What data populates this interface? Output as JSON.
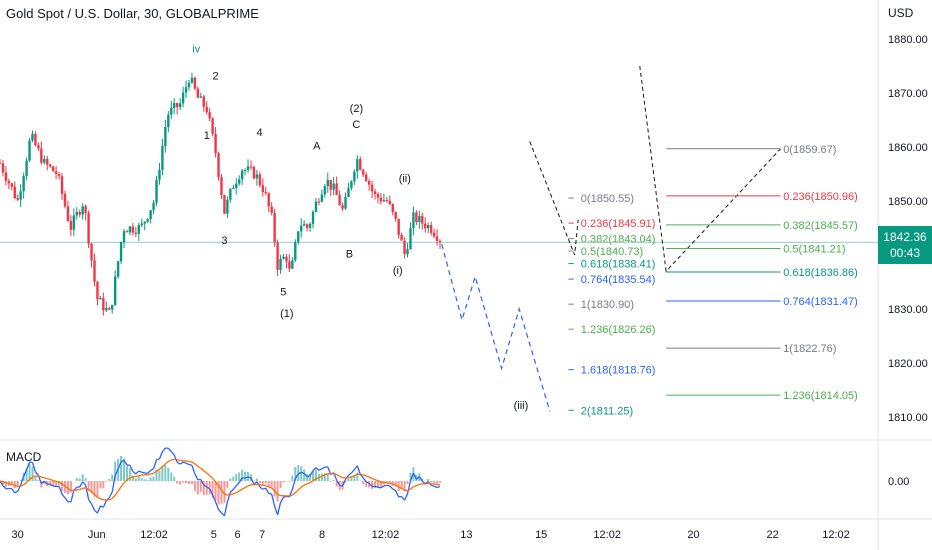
{
  "header": {
    "title": "Gold Spot / U.S. Dollar, 30, GLOBALPRIME",
    "currency": "USD"
  },
  "price_tag": {
    "price": "1842.36",
    "countdown": "00:43"
  },
  "macd": {
    "label": "MACD",
    "zero_tick": "0.00"
  },
  "chart_data": {
    "type": "candlestick",
    "y_axis": {
      "ticks": [
        1810,
        1820,
        1830,
        1840,
        1850,
        1860,
        1870,
        1880
      ],
      "tick_labels": [
        "1810.00",
        "1820.00",
        "1830.00",
        "1840.00",
        "1850.00",
        "1860.00",
        "1870.00",
        "1880.00"
      ]
    },
    "x_axis": {
      "ticks": [
        {
          "label": "30",
          "t": 0.02
        },
        {
          "label": "Jun",
          "t": 0.11
        },
        {
          "label": "12:02",
          "t": 0.175
        },
        {
          "label": "5",
          "t": 0.243
        },
        {
          "label": "6",
          "t": 0.27
        },
        {
          "label": "7",
          "t": 0.298
        },
        {
          "label": "8",
          "t": 0.366
        },
        {
          "label": "12:02",
          "t": 0.438
        },
        {
          "label": "13",
          "t": 0.53
        },
        {
          "label": "15",
          "t": 0.615
        },
        {
          "label": "12:02",
          "t": 0.69
        },
        {
          "label": "20",
          "t": 0.788
        },
        {
          "label": "22",
          "t": 0.878
        },
        {
          "label": "12:02",
          "t": 0.95
        }
      ]
    },
    "last_price": 1842.36,
    "price_path": [
      [
        0,
        1857
      ],
      [
        0.02,
        1850
      ],
      [
        0.035,
        1862
      ],
      [
        0.05,
        1857
      ],
      [
        0.065,
        1855
      ],
      [
        0.08,
        1845
      ],
      [
        0.095,
        1850
      ],
      [
        0.11,
        1832
      ],
      [
        0.125,
        1829
      ],
      [
        0.14,
        1845
      ],
      [
        0.16,
        1845
      ],
      [
        0.175,
        1850
      ],
      [
        0.19,
        1866
      ],
      [
        0.205,
        1868
      ],
      [
        0.215,
        1873
      ],
      [
        0.225,
        1869
      ],
      [
        0.235,
        1867
      ],
      [
        0.245,
        1859
      ],
      [
        0.255,
        1848
      ],
      [
        0.265,
        1853
      ],
      [
        0.275,
        1856
      ],
      [
        0.29,
        1855
      ],
      [
        0.3,
        1852
      ],
      [
        0.31,
        1846
      ],
      [
        0.315,
        1838
      ],
      [
        0.325,
        1840
      ],
      [
        0.33,
        1836
      ],
      [
        0.34,
        1846
      ],
      [
        0.35,
        1845
      ],
      [
        0.36,
        1850
      ],
      [
        0.37,
        1854
      ],
      [
        0.38,
        1852
      ],
      [
        0.39,
        1848
      ],
      [
        0.405,
        1858
      ],
      [
        0.415,
        1855
      ],
      [
        0.425,
        1851
      ],
      [
        0.44,
        1850
      ],
      [
        0.45,
        1846
      ],
      [
        0.46,
        1840
      ],
      [
        0.47,
        1847
      ],
      [
        0.48,
        1846
      ],
      [
        0.49,
        1845
      ],
      [
        0.5,
        1843
      ]
    ],
    "wave_labels": [
      {
        "text": "iv",
        "t": 0.223,
        "price": 1877.5,
        "color": "#089981"
      },
      {
        "text": "2",
        "t": 0.245,
        "price": 1872.5
      },
      {
        "text": "1",
        "t": 0.235,
        "price": 1861.5
      },
      {
        "text": "4",
        "t": 0.295,
        "price": 1862
      },
      {
        "text": "3",
        "t": 0.255,
        "price": 1842
      },
      {
        "text": "A",
        "t": 0.36,
        "price": 1859.5
      },
      {
        "text": "(2)",
        "t": 0.405,
        "price": 1866.5
      },
      {
        "text": "C",
        "t": 0.405,
        "price": 1863.5
      },
      {
        "text": "(ii)",
        "t": 0.46,
        "price": 1853.5
      },
      {
        "text": "B",
        "t": 0.397,
        "price": 1839.5
      },
      {
        "text": "(i)",
        "t": 0.452,
        "price": 1836.5
      },
      {
        "text": "5",
        "t": 0.322,
        "price": 1832.5
      },
      {
        "text": "(1)",
        "t": 0.326,
        "price": 1828.5
      },
      {
        "text": "(iii)",
        "t": 0.592,
        "price": 1811.5
      }
    ],
    "projection_path": [
      [
        0.502,
        1842
      ],
      [
        0.525,
        1828
      ],
      [
        0.54,
        1836
      ],
      [
        0.57,
        1819
      ],
      [
        0.59,
        1830
      ],
      [
        0.625,
        1811
      ]
    ],
    "fib_left": [
      {
        "label": "0",
        "value": "1850.55",
        "color": "#787b86",
        "y": 1850.55
      },
      {
        "label": "0.236",
        "value": "1845.91",
        "color": "#f23645",
        "y": 1845.91
      },
      {
        "label": "0.382",
        "value": "1843.04",
        "color": "#4caf50",
        "y": 1843.04
      },
      {
        "label": "0.5",
        "value": "1840.73",
        "color": "#4caf50",
        "y": 1840.73
      },
      {
        "label": "0.618",
        "value": "1838.41",
        "color": "#089981",
        "y": 1838.41
      },
      {
        "label": "0.764",
        "value": "1835.54",
        "color": "#2962ff",
        "y": 1835.54
      },
      {
        "label": "1",
        "value": "1830.90",
        "color": "#787b86",
        "y": 1830.9
      },
      {
        "label": "1.236",
        "value": "1826.26",
        "color": "#4caf50",
        "y": 1826.26
      },
      {
        "label": "1.618",
        "value": "1818.76",
        "color": "#2962ff",
        "y": 1818.76
      },
      {
        "label": "2",
        "value": "1811.25",
        "color": "#089981",
        "y": 1811.25
      }
    ],
    "fib_right": [
      {
        "label": "0",
        "value": "1859.67",
        "color": "#787b86",
        "y": 1859.67
      },
      {
        "label": "0.236",
        "value": "1850.96",
        "color": "#f23645",
        "y": 1850.96
      },
      {
        "label": "0.382",
        "value": "1845.57",
        "color": "#4caf50",
        "y": 1845.57
      },
      {
        "label": "0.5",
        "value": "1841.21",
        "color": "#4caf50",
        "y": 1841.21
      },
      {
        "label": "0.618",
        "value": "1836.86",
        "color": "#089981",
        "y": 1836.86
      },
      {
        "label": "0.764",
        "value": "1831.47",
        "color": "#2962ff",
        "y": 1831.47
      },
      {
        "label": "1",
        "value": "1822.76",
        "color": "#787b86",
        "y": 1822.76
      },
      {
        "label": "1.236",
        "value": "1814.05",
        "color": "#4caf50",
        "y": 1814.05
      }
    ],
    "colors": {
      "up": "#089981",
      "down": "#f23645",
      "macd": "#2962ff",
      "signal": "#ff6d00",
      "last": "#089981"
    }
  }
}
